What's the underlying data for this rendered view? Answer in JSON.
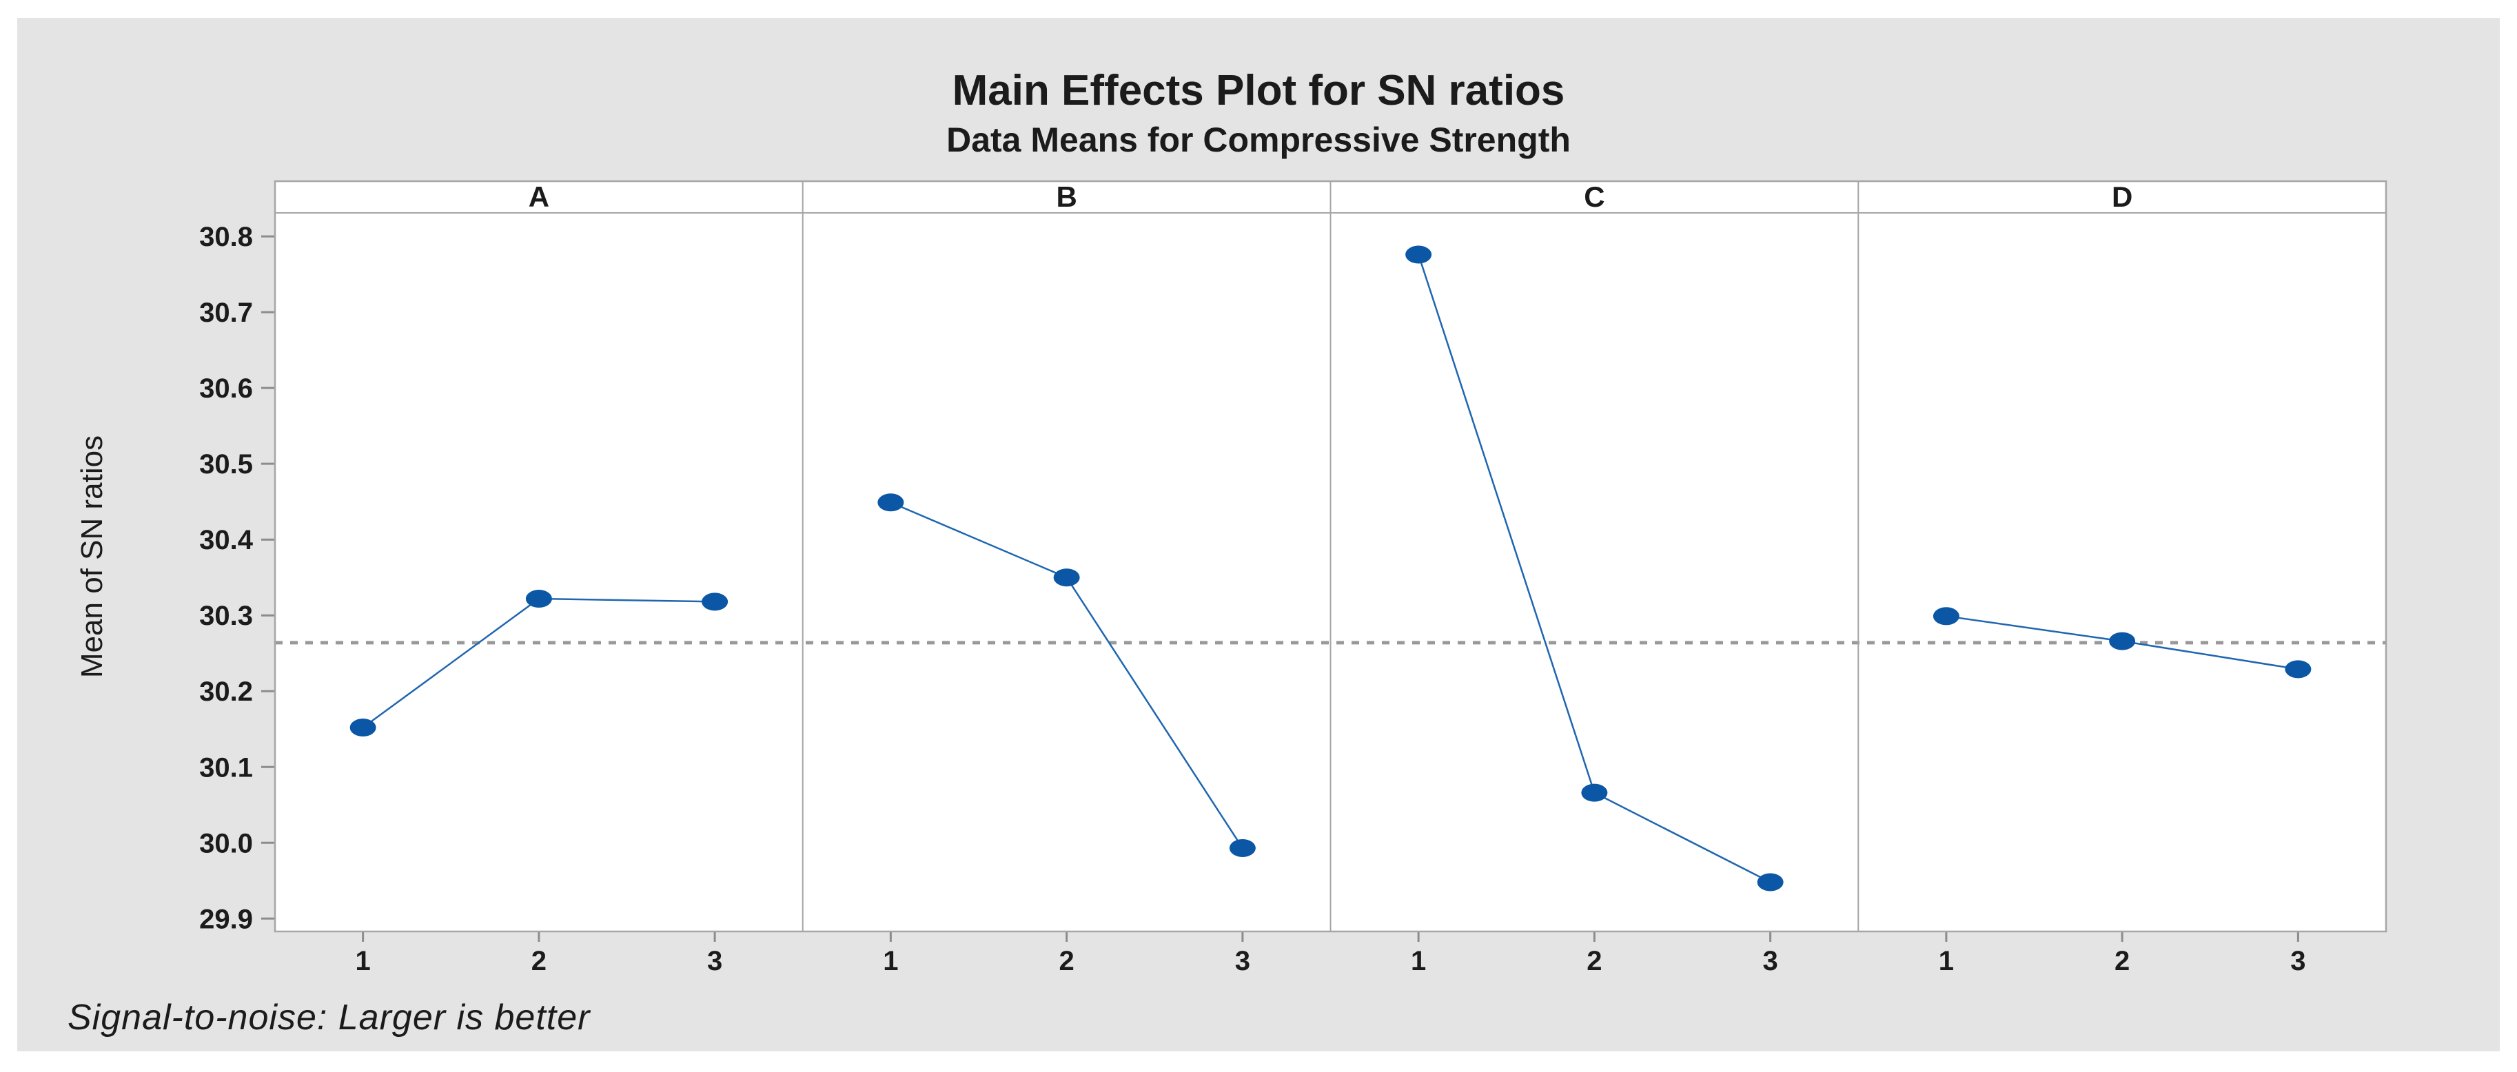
{
  "window": {
    "page_background": "#ffffff",
    "canvas_background": "#e4e4e4",
    "panel_background": "#ffffff"
  },
  "chart_data": {
    "type": "line",
    "title": "Main Effects Plot for SN ratios",
    "subtitle": "Data Means for Compressive Strength",
    "ylabel": "Mean of SN ratios",
    "footer_note": "Signal-to-noise: Larger is better",
    "panels": [
      {
        "label": "A",
        "x": [
          "1",
          "2",
          "3"
        ],
        "values": [
          30.152,
          30.322,
          30.318
        ]
      },
      {
        "label": "B",
        "x": [
          "1",
          "2",
          "3"
        ],
        "values": [
          30.449,
          30.35,
          29.993
        ]
      },
      {
        "label": "C",
        "x": [
          "1",
          "2",
          "3"
        ],
        "values": [
          30.776,
          30.066,
          29.948
        ]
      },
      {
        "label": "D",
        "x": [
          "1",
          "2",
          "3"
        ],
        "values": [
          30.299,
          30.266,
          30.229
        ]
      }
    ],
    "reference_line": 30.264,
    "yticks": [
      29.9,
      30.0,
      30.1,
      30.2,
      30.3,
      30.4,
      30.5,
      30.6,
      30.7,
      30.8
    ],
    "ylim": [
      29.883,
      30.831
    ],
    "grid": false,
    "legend": null,
    "colors": {
      "marker": "#0b57a5",
      "series_line": "#1f66b0",
      "reference_line": "#999999",
      "frame": "#a6a6a6",
      "tick": "#8c8c8c",
      "text": "#1b1b1b"
    }
  }
}
